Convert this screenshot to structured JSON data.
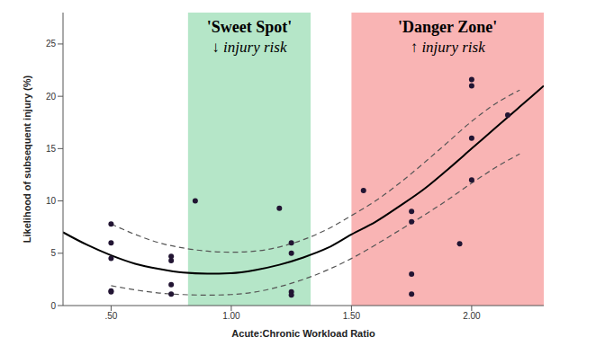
{
  "chart_data": {
    "type": "scatter",
    "x_label": "Acute:Chronic Workload Ratio",
    "y_label": "Likelihood of subsequent injury (%)",
    "xlim": [
      0.3,
      2.3
    ],
    "ylim": [
      0,
      28
    ],
    "xticks": [
      {
        "value": 0.5,
        "label": ".50"
      },
      {
        "value": 1,
        "label": "1.00"
      },
      {
        "value": 1.5,
        "label": "1.50"
      },
      {
        "value": 2,
        "label": "2.00"
      }
    ],
    "yticks": [
      0,
      5,
      10,
      15,
      20,
      25
    ],
    "color": "#221533",
    "marker": "circle",
    "x": [
      0.5,
      0.5,
      0.5,
      0.5,
      0.5,
      0.75,
      0.75,
      0.75,
      0.75,
      0.85,
      1.2,
      1.25,
      1.25,
      1.25,
      1.25,
      1.55,
      1.75,
      1.75,
      1.75,
      1.75,
      1.95,
      2.0,
      2.0,
      2.0,
      2.0,
      2.15
    ],
    "values": [
      7.8,
      6.0,
      4.5,
      1.4,
      1.3,
      4.7,
      4.3,
      2.0,
      1.1,
      10.0,
      9.3,
      6.0,
      5.0,
      1.3,
      1.0,
      11.0,
      9.0,
      8.0,
      3.0,
      1.1,
      5.9,
      21.6,
      21.0,
      16.0,
      12.0,
      18.2
    ],
    "fit": {
      "color": "#000000",
      "line_style": "solid",
      "x": [
        0.3,
        0.4,
        0.5,
        0.6,
        0.7,
        0.8,
        0.9,
        1.0,
        1.1,
        1.2,
        1.3,
        1.4,
        1.5,
        1.6,
        1.7,
        1.8,
        1.9,
        2.0,
        2.1,
        2.2,
        2.3
      ],
      "values": [
        7.0,
        5.8,
        4.8,
        4.0,
        3.5,
        3.15,
        3.05,
        3.1,
        3.4,
        3.9,
        4.6,
        5.5,
        6.8,
        8.0,
        9.5,
        11.1,
        13.0,
        15.0,
        17.0,
        19.0,
        21.0
      ]
    },
    "fit_upper": {
      "color": "#555555",
      "line_style": "dashed",
      "x": [
        0.5,
        0.6,
        0.7,
        0.8,
        0.9,
        1.0,
        1.1,
        1.2,
        1.3,
        1.4,
        1.5,
        1.6,
        1.7,
        1.8,
        1.9,
        2.0,
        2.1,
        2.2
      ],
      "values": [
        7.8,
        6.8,
        6.0,
        5.5,
        5.2,
        5.1,
        5.2,
        5.6,
        6.3,
        7.3,
        8.6,
        10.0,
        11.7,
        13.6,
        15.6,
        17.6,
        19.3,
        20.6
      ]
    },
    "fit_lower": {
      "color": "#555555",
      "line_style": "dashed",
      "x": [
        0.5,
        0.6,
        0.7,
        0.8,
        0.9,
        1.0,
        1.1,
        1.2,
        1.3,
        1.4,
        1.5,
        1.6,
        1.7,
        1.8,
        1.9,
        2.0,
        2.1,
        2.2
      ],
      "values": [
        1.9,
        1.5,
        1.2,
        1.05,
        1.0,
        1.05,
        1.3,
        1.8,
        2.5,
        3.4,
        4.5,
        5.8,
        7.2,
        8.6,
        10.1,
        11.7,
        13.2,
        14.5
      ]
    },
    "regions": [
      {
        "label": "'Sweet Spot'",
        "sublabel": "↓ injury risk",
        "x": [
          0.82,
          1.33
        ],
        "color": "#b5e6c8"
      },
      {
        "label": "'Danger Zone'",
        "sublabel": "↑ injury risk",
        "x": [
          1.5,
          2.3
        ],
        "color": "#f9b4b4"
      }
    ]
  }
}
